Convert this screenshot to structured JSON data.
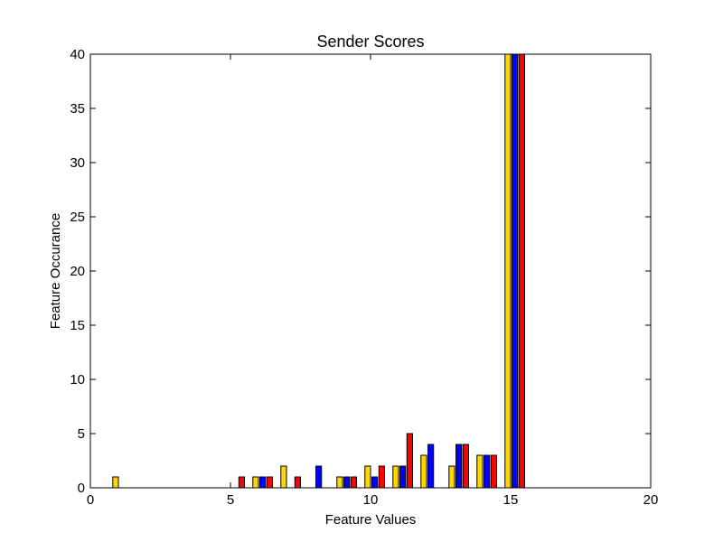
{
  "chart_data": {
    "type": "bar",
    "title": "Sender Scores",
    "xlabel": "Feature Values",
    "ylabel": "Feature Occurance",
    "xlim": [
      0,
      20
    ],
    "ylim": [
      0,
      40
    ],
    "xticks": [
      "0",
      "5",
      "10",
      "15",
      "20"
    ],
    "yticks": [
      "0",
      "5",
      "10",
      "15",
      "20",
      "25",
      "30",
      "35",
      "40"
    ],
    "grid": false,
    "series": [
      {
        "color": "#FFD700",
        "points": [
          {
            "x": 0.8,
            "y": 1
          },
          {
            "x": 5.8,
            "y": 1
          },
          {
            "x": 6.8,
            "y": 2
          },
          {
            "x": 8.8,
            "y": 1
          },
          {
            "x": 9.8,
            "y": 2
          },
          {
            "x": 10.8,
            "y": 2
          },
          {
            "x": 11.8,
            "y": 3
          },
          {
            "x": 12.8,
            "y": 2
          },
          {
            "x": 13.8,
            "y": 3
          },
          {
            "x": 14.8,
            "y": 40
          }
        ]
      },
      {
        "color": "#0000FF",
        "points": [
          {
            "x": 6.05,
            "y": 1
          },
          {
            "x": 8.05,
            "y": 2
          },
          {
            "x": 9.05,
            "y": 1
          },
          {
            "x": 10.05,
            "y": 1
          },
          {
            "x": 11.05,
            "y": 2
          },
          {
            "x": 12.05,
            "y": 4
          },
          {
            "x": 13.05,
            "y": 4
          },
          {
            "x": 14.05,
            "y": 3
          },
          {
            "x": 15.05,
            "y": 40
          }
        ]
      },
      {
        "color": "#FF0000",
        "points": [
          {
            "x": 5.3,
            "y": 1
          },
          {
            "x": 6.3,
            "y": 1
          },
          {
            "x": 7.3,
            "y": 1
          },
          {
            "x": 9.3,
            "y": 1
          },
          {
            "x": 10.3,
            "y": 2
          },
          {
            "x": 11.3,
            "y": 5
          },
          {
            "x": 13.3,
            "y": 4
          },
          {
            "x": 14.3,
            "y": 3
          },
          {
            "x": 15.3,
            "y": 40
          }
        ]
      }
    ]
  }
}
